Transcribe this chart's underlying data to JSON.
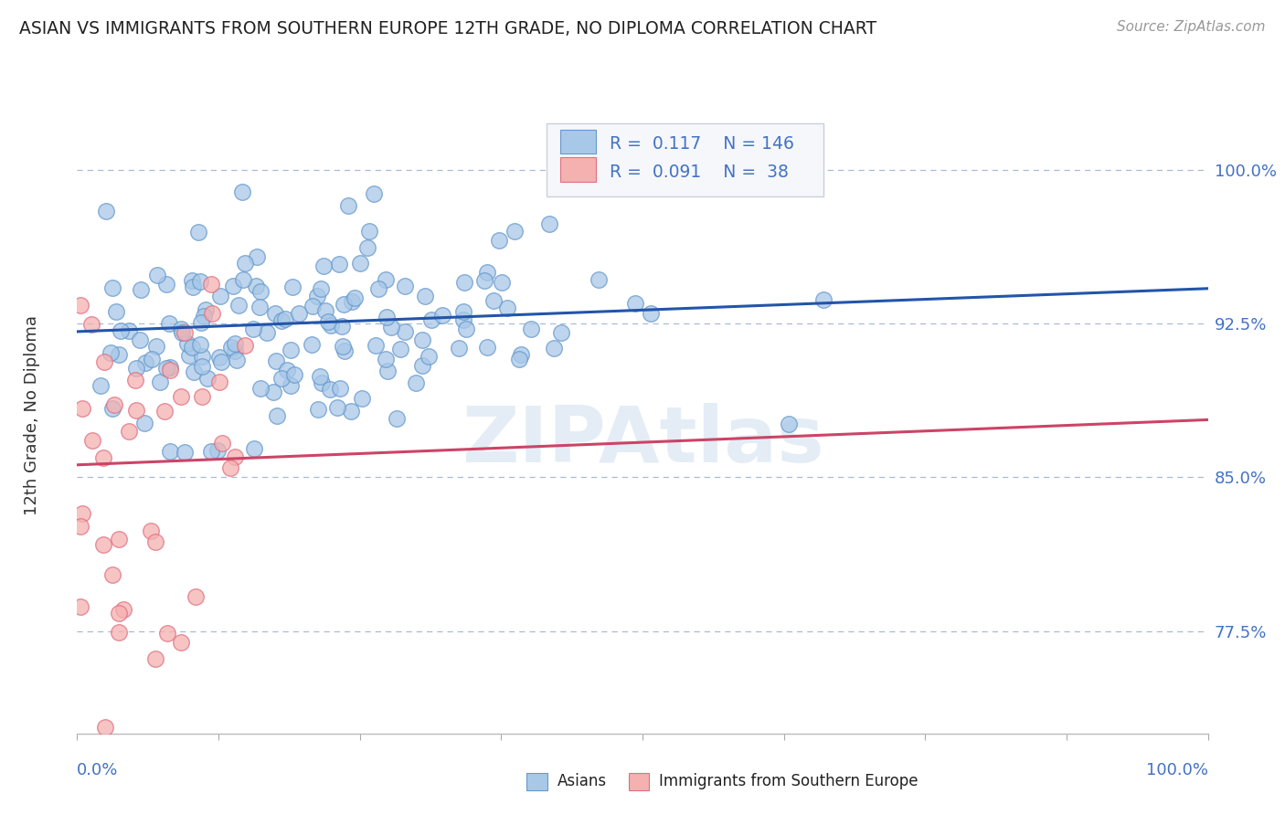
{
  "title": "ASIAN VS IMMIGRANTS FROM SOUTHERN EUROPE 12TH GRADE, NO DIPLOMA CORRELATION CHART",
  "source": "Source: ZipAtlas.com",
  "ylabel": "12th Grade, No Diploma",
  "yticks": [
    0.775,
    0.85,
    0.925,
    1.0
  ],
  "ytick_labels": [
    "77.5%",
    "85.0%",
    "92.5%",
    "100.0%"
  ],
  "xlim": [
    0.0,
    1.0
  ],
  "ylim": [
    0.725,
    1.035
  ],
  "blue_R": 0.117,
  "blue_N": 146,
  "pink_R": 0.091,
  "pink_N": 38,
  "blue_face_color": "#a8c8e8",
  "blue_edge_color": "#6699cc",
  "pink_face_color": "#f5b0b0",
  "pink_edge_color": "#e07080",
  "blue_line_color": "#2255aa",
  "pink_line_color": "#cc4466",
  "legend_blue_label": "Asians",
  "legend_pink_label": "Immigrants from Southern Europe",
  "watermark": "ZIPAtlas",
  "background_color": "#ffffff",
  "grid_color": "#aabbd4",
  "title_color": "#222222",
  "axis_label_color": "#4472c4",
  "blue_scatter_seed": 42,
  "pink_scatter_seed": 7,
  "blue_trend_start_y": 0.921,
  "blue_trend_end_y": 0.942,
  "pink_trend_start_y": 0.856,
  "pink_trend_end_y": 0.878
}
